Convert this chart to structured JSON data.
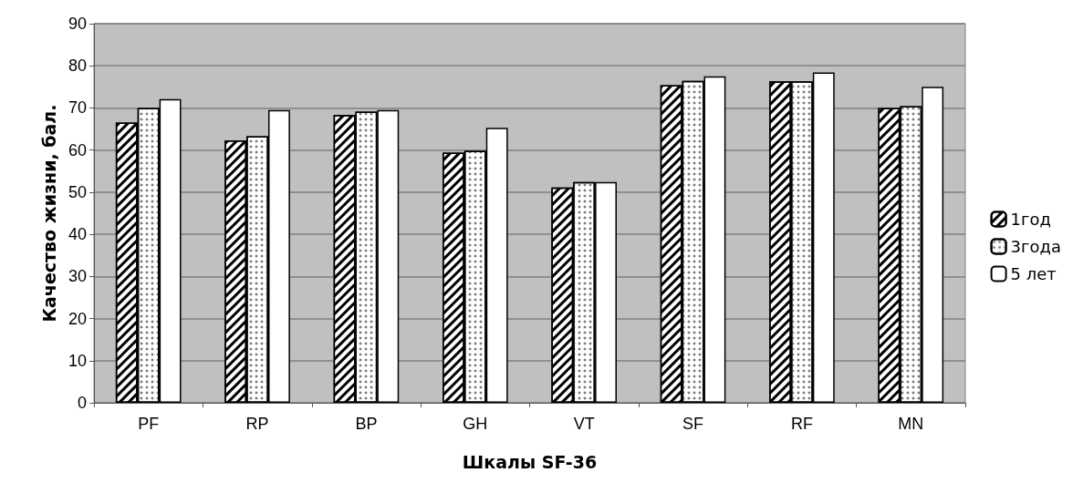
{
  "chart_data": {
    "type": "bar",
    "xlabel": "Шкалы SF-36",
    "ylabel": "Качество жизни, бал.",
    "categories": [
      "PF",
      "RP",
      "BP",
      "GH",
      "VT",
      "SF",
      "RF",
      "MN"
    ],
    "series": [
      {
        "name": "1год",
        "color": "#ffffff",
        "values": [
          66.5,
          62.3,
          68.3,
          59.4,
          51.1,
          75.4,
          76.3,
          70
        ]
      },
      {
        "name": "3года",
        "color": "#ffffff",
        "values": [
          70,
          63.3,
          69.1,
          59.8,
          52.4,
          76.4,
          76.3,
          70.4
        ]
      },
      {
        "name": "5 лет",
        "color": "#ffffff",
        "values": [
          72.1,
          69.5,
          69.5,
          65.3,
          52.4,
          77.5,
          78.4,
          75
        ]
      }
    ],
    "ylim": [
      0,
      90
    ],
    "yticks": [
      0,
      10,
      20,
      30,
      40,
      50,
      60,
      70,
      80,
      90
    ],
    "grid": "y",
    "legend": "right"
  }
}
